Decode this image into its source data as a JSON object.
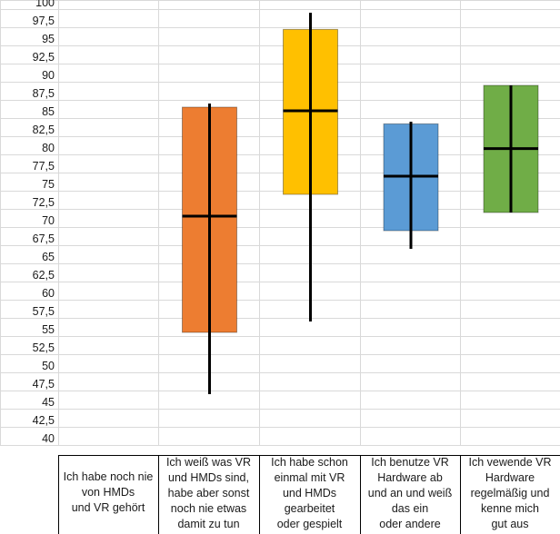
{
  "chart_data": {
    "type": "box",
    "title": "",
    "xlabel": "",
    "ylabel": "",
    "ylim": [
      40,
      100
    ],
    "ytick_step": 2.5,
    "grid": true,
    "legend": "none",
    "categories": [
      "",
      "Ich habe noch nie von HMDs und VR gehört",
      "Ich weiß was VR und HMDs sind, habe aber sonst noch nie etwas damit zu tun",
      "Ich habe schon einmal mit VR und HMDs gearbeitet oder gespielt",
      "Ich benutze VR Hardware ab und an und weiß das ein oder andere",
      "Ich vewende VR Hardware regelmäßig und kenne mich gut aus"
    ],
    "category_lines": [
      [],
      [
        "Ich habe noch nie",
        "von HMDs",
        "und VR gehört"
      ],
      [
        "Ich weiß was VR",
        "und HMDs sind,",
        "habe aber sonst",
        "noch nie etwas",
        "damit zu tun"
      ],
      [
        "Ich habe schon",
        "einmal mit VR",
        "und HMDs",
        "gearbeitet",
        "oder gespielt"
      ],
      [
        "Ich benutze VR",
        "Hardware ab",
        "und an und weiß",
        "das ein",
        "oder andere"
      ],
      [
        "Ich vewende VR",
        "Hardware",
        "regelmäßig und",
        "kenne mich",
        "gut aus"
      ]
    ],
    "series": [
      null,
      null,
      {
        "min": 47,
        "q1": 55.5,
        "median": 71.5,
        "q3": 86.5,
        "max": 87,
        "color": "#ed7d31"
      },
      {
        "min": 57,
        "q1": 74.5,
        "median": 86,
        "q3": 97.2,
        "max": 99.5,
        "color": "#ffc000"
      },
      {
        "min": 67,
        "q1": 69.5,
        "median": 77,
        "q3": 84.2,
        "max": 84.5,
        "color": "#5b9bd5"
      },
      {
        "min": 72,
        "q1": 72,
        "median": 80.8,
        "q3": 89.5,
        "max": 89.5,
        "color": "#70ad47"
      }
    ]
  }
}
